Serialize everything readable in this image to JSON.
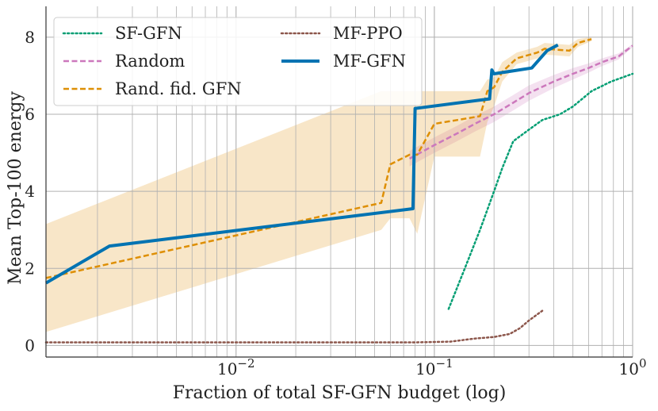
{
  "chart_data": {
    "type": "line",
    "title": "",
    "xlabel": "Fraction of total SF-GFN budget (log)",
    "ylabel": "Mean Top-100 energy",
    "xscale": "log",
    "xlim": [
      0.0011,
      1.0
    ],
    "ylim": [
      -0.3,
      8.8
    ],
    "x_ticks": [
      {
        "value": 0.01,
        "base": "10",
        "exp": "−2"
      },
      {
        "value": 0.1,
        "base": "10",
        "exp": "−1"
      },
      {
        "value": 1.0,
        "base": "10",
        "exp": "0"
      }
    ],
    "y_ticks": [
      0,
      2,
      4,
      6,
      8
    ],
    "grid": true,
    "legend_position": "top-left",
    "series": [
      {
        "name": "SF-GFN",
        "color": "#029e73",
        "dash": "dotted",
        "width": 2.5,
        "x": [
          0.118,
          0.14,
          0.17,
          0.2,
          0.22,
          0.25,
          0.3,
          0.35,
          0.43,
          0.5,
          0.62,
          0.78,
          1.0
        ],
        "y": [
          0.95,
          1.9,
          3.0,
          4.0,
          4.6,
          5.3,
          5.6,
          5.85,
          6.0,
          6.2,
          6.6,
          6.85,
          7.05
        ]
      },
      {
        "name": "Random",
        "color": "#cc78bc",
        "dash": "dashed",
        "width": 2.5,
        "x": [
          0.075,
          0.1,
          0.13,
          0.16,
          0.2,
          0.25,
          0.3,
          0.4,
          0.5,
          0.6,
          0.7,
          0.85,
          1.0
        ],
        "y": [
          4.85,
          5.2,
          5.5,
          5.75,
          6.0,
          6.3,
          6.55,
          6.85,
          7.05,
          7.2,
          7.35,
          7.5,
          7.78
        ],
        "band_upper": [
          5.05,
          5.4,
          5.7,
          5.95,
          6.2,
          6.5,
          6.75,
          7.02,
          7.2,
          7.32,
          7.45,
          7.58,
          7.82
        ],
        "band_lower": [
          4.65,
          5.0,
          5.3,
          5.55,
          5.8,
          6.1,
          6.35,
          6.68,
          6.9,
          7.08,
          7.25,
          7.42,
          7.74
        ]
      },
      {
        "name": "Rand. fid. GFN",
        "color": "#de8f05",
        "dash": "dashed",
        "width": 2.5,
        "x": [
          0.0011,
          0.054,
          0.06,
          0.075,
          0.082,
          0.1,
          0.17,
          0.185,
          0.2,
          0.22,
          0.26,
          0.33,
          0.36,
          0.48,
          0.53,
          0.62
        ],
        "y": [
          1.75,
          3.7,
          4.7,
          4.95,
          4.95,
          5.75,
          5.95,
          6.6,
          6.7,
          7.1,
          7.45,
          7.6,
          7.7,
          7.65,
          7.85,
          7.95
        ],
        "band_upper": [
          3.15,
          6.6,
          6.6,
          6.6,
          6.6,
          6.6,
          6.6,
          6.9,
          6.95,
          7.35,
          7.6,
          7.75,
          7.85,
          7.8,
          7.95,
          8.0
        ],
        "band_lower": [
          0.35,
          3.0,
          3.3,
          3.3,
          2.9,
          4.9,
          4.9,
          5.8,
          6.2,
          6.85,
          7.3,
          7.45,
          7.55,
          7.5,
          7.75,
          7.9
        ]
      },
      {
        "name": "MF-PPO",
        "color": "#8c564b",
        "dash": "dotted",
        "width": 2.5,
        "x": [
          0.0011,
          0.03,
          0.08,
          0.12,
          0.16,
          0.2,
          0.24,
          0.27,
          0.3,
          0.35
        ],
        "y": [
          0.08,
          0.08,
          0.08,
          0.1,
          0.18,
          0.22,
          0.3,
          0.45,
          0.65,
          0.9
        ]
      },
      {
        "name": "MF-GFN",
        "color": "#0173b2",
        "dash": "solid",
        "width": 4,
        "x": [
          0.0011,
          0.0023,
          0.078,
          0.08,
          0.19,
          0.195,
          0.2,
          0.31,
          0.37,
          0.42
        ],
        "y": [
          1.62,
          2.58,
          3.55,
          6.15,
          6.4,
          7.15,
          7.05,
          7.2,
          7.65,
          7.8
        ]
      }
    ]
  }
}
